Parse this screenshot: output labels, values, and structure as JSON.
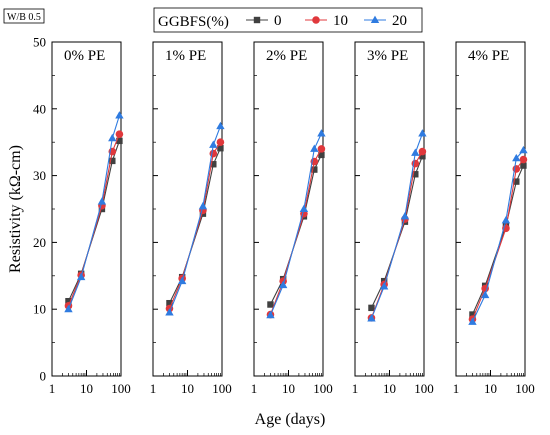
{
  "chart_data": {
    "type": "line",
    "ylabel": "Resistivity (kΩ-cm)",
    "xlabel": "Age (days)",
    "annotation": "W/B 0.5",
    "x_scale": "log",
    "xlim": [
      1,
      100
    ],
    "ylim": [
      0,
      50
    ],
    "x_ticks": [
      1,
      10,
      100
    ],
    "x_tick_labels": [
      "1",
      "10",
      "100"
    ],
    "y_ticks": [
      0,
      10,
      20,
      30,
      40,
      50
    ],
    "y_tick_labels": [
      "0",
      "10",
      "20",
      "30",
      "40",
      "50"
    ],
    "legend": {
      "title": "GGBFS(%)",
      "placement": "top",
      "entries": [
        "0",
        "10",
        "20"
      ]
    },
    "colors": {
      "0": "#404040",
      "10": "#e0383c",
      "20": "#2f7be0"
    },
    "x": [
      3,
      7,
      28,
      56,
      90
    ],
    "panels": [
      {
        "title": "0% PE",
        "series": [
          {
            "name": "0",
            "values": [
              11.2,
              15.3,
              25.0,
              32.2,
              35.2
            ]
          },
          {
            "name": "10",
            "values": [
              10.5,
              15.1,
              25.5,
              33.6,
              36.2
            ]
          },
          {
            "name": "20",
            "values": [
              10.0,
              14.8,
              26.1,
              35.6,
              39.0
            ]
          }
        ]
      },
      {
        "title": "1% PE",
        "series": [
          {
            "name": "0",
            "values": [
              10.9,
              14.8,
              24.3,
              31.7,
              34.1
            ]
          },
          {
            "name": "10",
            "values": [
              10.1,
              14.6,
              24.8,
              33.3,
              35.0
            ]
          },
          {
            "name": "20",
            "values": [
              9.5,
              14.2,
              25.4,
              34.6,
              37.4
            ]
          }
        ]
      },
      {
        "title": "2% PE",
        "series": [
          {
            "name": "0",
            "values": [
              10.7,
              14.5,
              23.9,
              30.9,
              33.1
            ]
          },
          {
            "name": "10",
            "values": [
              9.2,
              14.2,
              24.3,
              32.1,
              34.0
            ]
          },
          {
            "name": "20",
            "values": [
              9.1,
              13.6,
              25.0,
              34.0,
              36.3
            ]
          }
        ]
      },
      {
        "title": "3% PE",
        "series": [
          {
            "name": "0",
            "values": [
              10.2,
              14.2,
              23.1,
              30.2,
              32.9
            ]
          },
          {
            "name": "10",
            "values": [
              8.7,
              13.7,
              23.5,
              31.8,
              33.6
            ]
          },
          {
            "name": "20",
            "values": [
              8.6,
              13.4,
              23.9,
              33.4,
              36.3
            ]
          }
        ]
      },
      {
        "title": "4% PE",
        "series": [
          {
            "name": "0",
            "values": [
              9.2,
              13.5,
              22.5,
              29.1,
              31.5
            ]
          },
          {
            "name": "10",
            "values": [
              8.5,
              13.1,
              22.1,
              31.0,
              32.4
            ]
          },
          {
            "name": "20",
            "values": [
              8.1,
              12.1,
              23.3,
              32.6,
              33.8
            ]
          }
        ]
      }
    ]
  }
}
